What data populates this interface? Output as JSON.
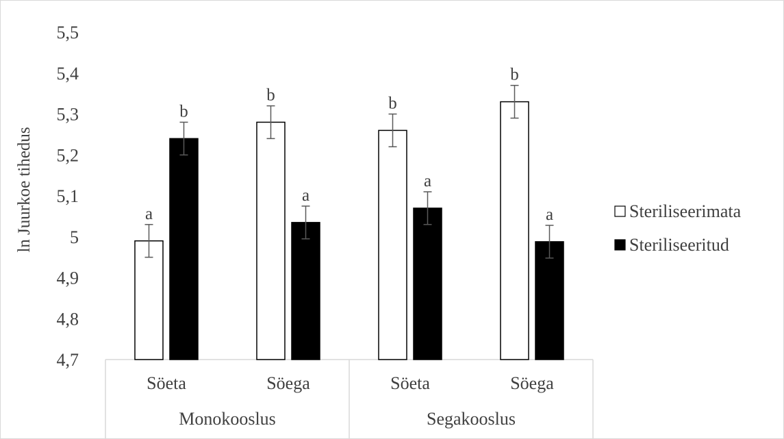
{
  "chart_data": {
    "type": "bar",
    "title": "",
    "xlabel": "",
    "ylabel": "ln Juurkoe tihedus",
    "ylim": [
      4.7,
      5.5
    ],
    "yticks": [
      "4,7",
      "4,8",
      "4,9",
      "5",
      "5,1",
      "5,2",
      "5,3",
      "5,4",
      "5,5"
    ],
    "grid": false,
    "legend_position": "right",
    "groups": [
      {
        "label": "Monokooslus",
        "categories": [
          "Söeta",
          "Söega"
        ]
      },
      {
        "label": "Segakooslus",
        "categories": [
          "Söeta",
          "Söega"
        ]
      }
    ],
    "categories": [
      "Söeta",
      "Söega",
      "Söeta",
      "Söega"
    ],
    "series": [
      {
        "name": "Steriliseerimata",
        "color": "#ffffff",
        "values": [
          4.99,
          5.28,
          5.26,
          5.33
        ],
        "error": [
          0.04,
          0.04,
          0.04,
          0.04
        ],
        "letters": [
          "a",
          "b",
          "b",
          "b"
        ]
      },
      {
        "name": "Steriliseeritud",
        "color": "#000000",
        "values": [
          5.24,
          5.035,
          5.07,
          4.988
        ],
        "error": [
          0.04,
          0.04,
          0.04,
          0.04
        ],
        "letters": [
          "b",
          "a",
          "a",
          "a"
        ]
      }
    ]
  }
}
